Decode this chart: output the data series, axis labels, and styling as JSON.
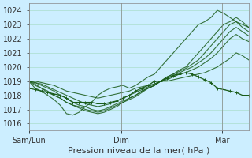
{
  "bg_color": "#cceeff",
  "grid_color": "#aaddcc",
  "line_color": "#1a5c1a",
  "ylim": [
    1015.5,
    1024.5
  ],
  "yticks": [
    1016,
    1017,
    1018,
    1019,
    1020,
    1021,
    1022,
    1023,
    1024
  ],
  "xlabel": "Pression niveau de la mer( hPa )",
  "x_tick_labels": [
    "Sam/Lun",
    "Dim",
    "Mar"
  ],
  "x_tick_positions": [
    0.0,
    0.42,
    0.88
  ],
  "title_fontsize": 8,
  "label_fontsize": 8,
  "tick_fontsize": 7,
  "series": [
    [
      1019.0,
      1018.5,
      1018.3,
      1018.0,
      1017.7,
      1017.3,
      1016.7,
      1016.6,
      1016.8,
      1017.2,
      1017.5,
      1018.0,
      1018.3,
      1018.5,
      1018.6,
      1018.7,
      1018.5,
      1018.7,
      1019.0,
      1019.3,
      1019.5,
      1020.0,
      1020.5,
      1021.0,
      1021.5,
      1022.0,
      1022.5,
      1023.0,
      1023.2,
      1023.5,
      1024.0,
      1023.8,
      1023.5,
      1023.2,
      1023.0,
      1022.8
    ],
    [
      1019.0,
      1018.7,
      1018.5,
      1018.2,
      1018.0,
      1017.8,
      1017.5,
      1017.3,
      1017.1,
      1016.9,
      1016.8,
      1016.7,
      1016.8,
      1017.0,
      1017.2,
      1017.5,
      1017.8,
      1018.0,
      1018.3,
      1018.5,
      1018.7,
      1019.0,
      1019.3,
      1019.5,
      1019.8,
      1020.0,
      1020.5,
      1021.0,
      1021.5,
      1022.0,
      1022.5,
      1023.0,
      1023.2,
      1023.5,
      1023.2,
      1022.8
    ],
    [
      1019.0,
      1018.8,
      1018.5,
      1018.3,
      1018.0,
      1017.8,
      1017.5,
      1017.3,
      1017.2,
      1017.0,
      1016.9,
      1016.8,
      1016.9,
      1017.1,
      1017.3,
      1017.5,
      1017.7,
      1017.9,
      1018.2,
      1018.5,
      1018.7,
      1019.0,
      1019.3,
      1019.5,
      1019.7,
      1019.9,
      1020.2,
      1020.5,
      1021.0,
      1021.5,
      1022.0,
      1022.5,
      1023.0,
      1023.2,
      1022.8,
      1022.5
    ],
    [
      1019.0,
      1018.9,
      1018.7,
      1018.5,
      1018.3,
      1018.0,
      1017.8,
      1017.5,
      1017.3,
      1017.2,
      1017.0,
      1016.9,
      1017.0,
      1017.2,
      1017.4,
      1017.6,
      1017.8,
      1018.0,
      1018.3,
      1018.5,
      1018.7,
      1019.0,
      1019.2,
      1019.4,
      1019.6,
      1019.8,
      1020.0,
      1020.3,
      1020.6,
      1021.0,
      1021.5,
      1022.0,
      1022.5,
      1022.8,
      1022.5,
      1022.2
    ],
    [
      1019.0,
      1018.9,
      1018.8,
      1018.6,
      1018.4,
      1018.2,
      1018.0,
      1017.8,
      1017.6,
      1017.4,
      1017.3,
      1017.2,
      1017.3,
      1017.4,
      1017.6,
      1017.8,
      1018.0,
      1018.2,
      1018.4,
      1018.6,
      1018.8,
      1019.0,
      1019.1,
      1019.3,
      1019.5,
      1019.6,
      1019.8,
      1020.0,
      1020.3,
      1020.6,
      1021.0,
      1021.5,
      1022.0,
      1022.3,
      1022.0,
      1021.8
    ],
    [
      1019.0,
      1019.0,
      1018.9,
      1018.8,
      1018.7,
      1018.5,
      1018.3,
      1018.2,
      1018.1,
      1018.0,
      1017.9,
      1017.8,
      1017.9,
      1018.0,
      1018.1,
      1018.2,
      1018.3,
      1018.5,
      1018.6,
      1018.7,
      1018.8,
      1019.0,
      1019.0,
      1019.1,
      1019.2,
      1019.3,
      1019.4,
      1019.5,
      1019.6,
      1019.8,
      1020.0,
      1020.3,
      1020.6,
      1021.0,
      1020.8,
      1020.5
    ],
    [
      1018.5,
      1018.4,
      1018.3,
      1018.2,
      1018.1,
      1018.0,
      1017.8,
      1017.5,
      1017.5,
      1017.5,
      1017.5,
      1017.4,
      1017.4,
      1017.5,
      1017.6,
      1017.8,
      1018.0,
      1018.3,
      1018.5,
      1018.7,
      1019.0,
      1019.0,
      1019.2,
      1019.4,
      1019.5,
      1019.6,
      1019.5,
      1019.3,
      1019.1,
      1018.9,
      1018.5,
      1018.4,
      1018.3,
      1018.2,
      1018.0,
      1018.0
    ]
  ]
}
